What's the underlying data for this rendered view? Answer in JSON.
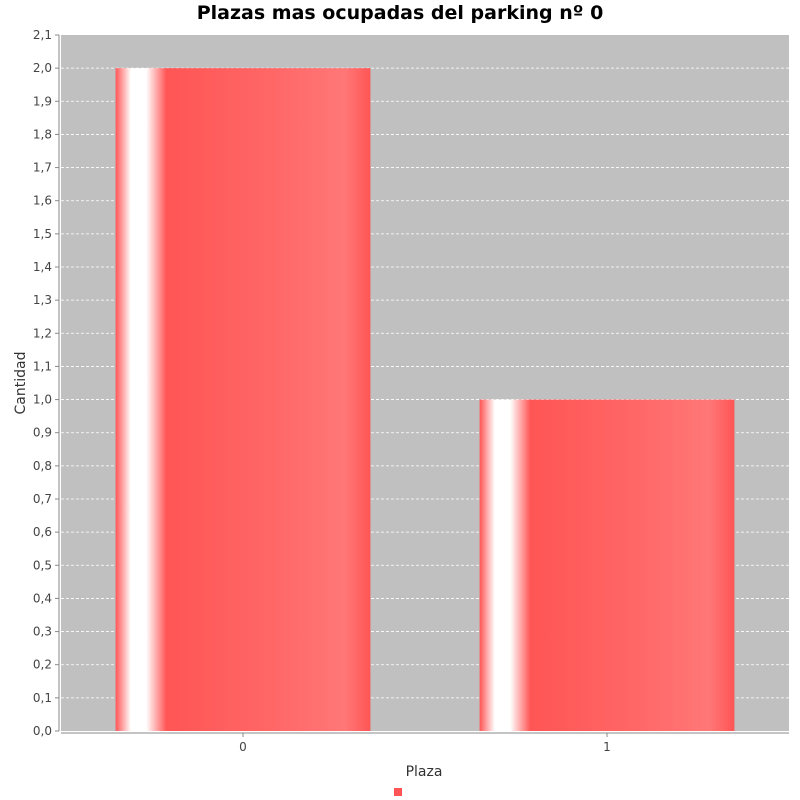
{
  "chart_data": {
    "type": "bar",
    "title": "Plazas mas ocupadas del parking nº 0",
    "xlabel": "Plaza",
    "ylabel": "Cantidad",
    "categories": [
      "0",
      "1"
    ],
    "values": [
      2.0,
      1.0
    ],
    "ylim": [
      0,
      2.1
    ],
    "ytick_step": 0.1,
    "ytick_decimal": ",",
    "grid": true,
    "legend": "bottom",
    "colors": {
      "plot_background": "#c0c0c0",
      "bar": "#ff5555",
      "bar_highlight": "#ffffff",
      "gridline": "#ffffff"
    }
  }
}
